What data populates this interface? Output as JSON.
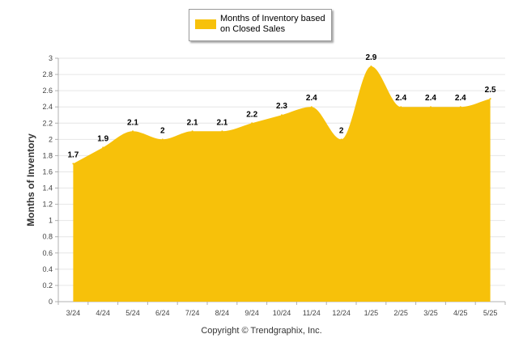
{
  "chart_data": {
    "type": "area",
    "categories": [
      "3/24",
      "4/24",
      "5/24",
      "6/24",
      "7/24",
      "8/24",
      "9/24",
      "10/24",
      "11/24",
      "12/24",
      "1/25",
      "2/25",
      "3/25",
      "4/25",
      "5/25"
    ],
    "series": [
      {
        "name": "Months of Inventory based on Closed Sales",
        "values": [
          1.7,
          1.9,
          2.1,
          2,
          2.1,
          2.1,
          2.2,
          2.3,
          2.4,
          2,
          2.9,
          2.4,
          2.4,
          2.4,
          2.5
        ]
      }
    ],
    "data_labels": [
      "1.7",
      "1.9",
      "2.1",
      "2",
      "2.1",
      "2.1",
      "2.2",
      "2.3",
      "2.4",
      "2",
      "2.9",
      "2.4",
      "2.4",
      "2.4",
      "2.5"
    ],
    "ylabel": "Months of Inventory",
    "ylim": [
      0,
      3
    ],
    "yticks": [
      "0",
      "0.2",
      "0.4",
      "0.6",
      "0.8",
      "1",
      "1.2",
      "1.4",
      "1.6",
      "1.8",
      "2",
      "2.2",
      "2.4",
      "2.6",
      "2.8",
      "3"
    ],
    "grid": true,
    "legend_position": "top-center",
    "colors": {
      "fill": "#F7C10A",
      "grid": "#e6e6e6",
      "axis": "#b0b0b0"
    }
  },
  "legend": {
    "label": "Months of Inventory based on Closed Sales"
  },
  "footer": {
    "copyright": "Copyright © Trendgraphix, Inc."
  }
}
